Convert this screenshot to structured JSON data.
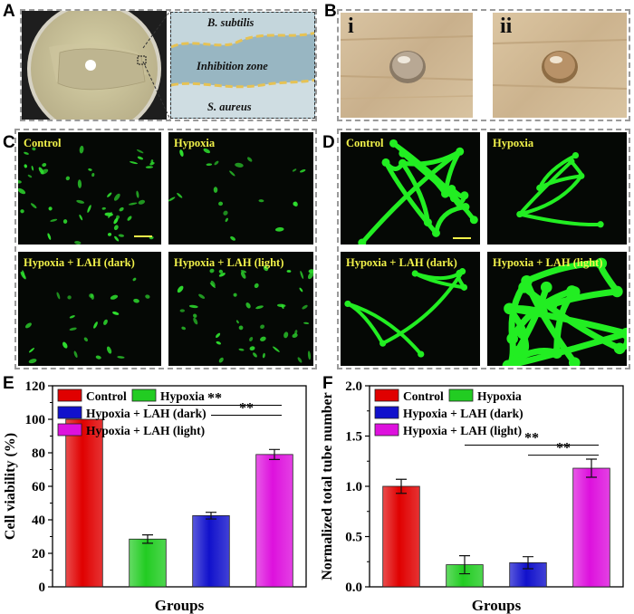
{
  "panels": {
    "A": {
      "label": "A",
      "bsubtilis": "B. subtilis",
      "zone": "Inhibition zone",
      "saureus": "S. aureus"
    },
    "B": {
      "label": "B",
      "sub_i": "i",
      "sub_ii": "ii"
    },
    "C": {
      "label": "C",
      "tiles": [
        "Control",
        "Hypoxia",
        "Hypoxia + LAH (dark)",
        "Hypoxia + LAH (light)"
      ]
    },
    "D": {
      "label": "D",
      "tiles": [
        "Control",
        "Hypoxia",
        "Hypoxia + LAH (dark)",
        "Hypoxia + LAH (light)"
      ]
    },
    "E": {
      "label": "E",
      "sig1": "**",
      "sig2": "**"
    },
    "F": {
      "label": "F",
      "sig1": "**",
      "sig2": "**"
    }
  },
  "colors": {
    "control": "#e00000",
    "hypoxia": "#22cc22",
    "dark": "#1111cc",
    "light": "#dd11dd",
    "micro_label": "#f2f24a",
    "tube": "#22ee22"
  },
  "chart_data": [
    {
      "type": "bar",
      "panel": "E",
      "categories": [
        "Control",
        "Hypoxia",
        "Hypoxia + LAH (dark)",
        "Hypoxia + LAH (light)"
      ],
      "values": [
        100,
        28.5,
        42.5,
        79
      ],
      "errors": [
        0,
        2.5,
        2,
        3
      ],
      "xlabel": "Groups",
      "ylabel": "Cell viability (%)",
      "ylim": [
        0,
        120
      ],
      "yticks": [
        "0",
        "20",
        "40",
        "60",
        "80",
        "100",
        "120"
      ],
      "legend": [
        "Control",
        "Hypoxia",
        "Hypoxia + LAH (dark)",
        "Hypoxia + LAH (light)"
      ]
    },
    {
      "type": "bar",
      "panel": "F",
      "categories": [
        "Control",
        "Hypoxia",
        "Hypoxia + LAH (dark)",
        "Hypoxia + LAH (light)"
      ],
      "values": [
        1.0,
        0.22,
        0.24,
        1.18
      ],
      "errors": [
        0.07,
        0.09,
        0.06,
        0.09
      ],
      "xlabel": "Groups",
      "ylabel": "Normalized total tube number",
      "ylim": [
        0,
        2.0
      ],
      "yticks": [
        "0.0",
        "0.5",
        "1.0",
        "1.5",
        "2.0"
      ],
      "legend": [
        "Control",
        "Hypoxia",
        "Hypoxia + LAH (dark)",
        "Hypoxia + LAH (light)"
      ]
    }
  ]
}
